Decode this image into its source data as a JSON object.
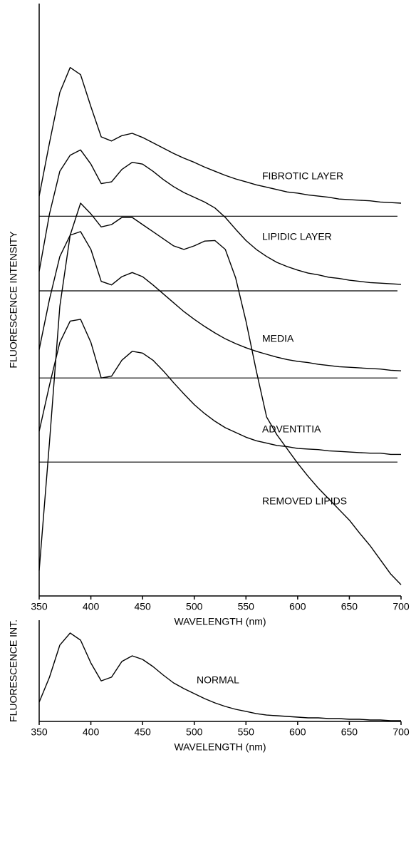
{
  "chart_data": [
    {
      "type": "line",
      "xlabel": "WAVELENGTH (nm)",
      "ylabel": "FLUORESCENCE INTENSITY",
      "xlim": [
        350,
        700
      ],
      "xticks": [
        350,
        400,
        450,
        500,
        550,
        600,
        650,
        700
      ],
      "ylim": [
        0,
        100
      ],
      "color": "#000000",
      "x": [
        350,
        360,
        370,
        380,
        390,
        400,
        410,
        420,
        430,
        440,
        450,
        460,
        470,
        480,
        490,
        500,
        510,
        520,
        530,
        540,
        550,
        560,
        570,
        580,
        590,
        600,
        610,
        620,
        630,
        640,
        650,
        660,
        670,
        680,
        690,
        700
      ],
      "series": [
        {
          "name": "FIBROTIC LAYER",
          "baseline": 64.1,
          "values": [
            67.5,
            76.5,
            85.0,
            89.2,
            88.0,
            82.6,
            77.5,
            76.8,
            77.7,
            78.1,
            77.4,
            76.5,
            75.6,
            74.7,
            73.9,
            73.2,
            72.4,
            71.7,
            71.0,
            70.4,
            69.9,
            69.4,
            69.0,
            68.6,
            68.2,
            68.0,
            67.7,
            67.5,
            67.3,
            67.0,
            66.9,
            66.8,
            66.7,
            66.5,
            66.4,
            66.3
          ]
        },
        {
          "name": "LIPIDIC LAYER",
          "baseline": 51.5,
          "values": [
            54.8,
            64.5,
            71.7,
            74.4,
            75.3,
            72.9,
            69.6,
            69.9,
            72.0,
            73.2,
            72.9,
            71.7,
            70.3,
            69.1,
            68.1,
            67.3,
            66.5,
            65.5,
            63.9,
            61.9,
            60.0,
            58.5,
            57.3,
            56.3,
            55.6,
            55.0,
            54.5,
            54.2,
            53.8,
            53.6,
            53.3,
            53.1,
            52.9,
            52.8,
            52.7,
            52.6
          ]
        },
        {
          "name": "MEDIA",
          "baseline": 36.8,
          "values": [
            41.6,
            50.1,
            57.3,
            60.9,
            61.5,
            58.5,
            53.1,
            52.5,
            53.9,
            54.6,
            53.9,
            52.5,
            51.0,
            49.5,
            48.0,
            46.7,
            45.5,
            44.4,
            43.4,
            42.6,
            41.9,
            41.3,
            40.8,
            40.3,
            39.9,
            39.6,
            39.4,
            39.1,
            38.9,
            38.7,
            38.6,
            38.5,
            38.4,
            38.3,
            38.1,
            38.0
          ]
        },
        {
          "name": "ADVENTITIA",
          "baseline": 22.6,
          "values": [
            27.8,
            35.6,
            42.8,
            46.4,
            46.7,
            42.8,
            36.8,
            37.1,
            39.8,
            41.3,
            41.0,
            39.8,
            38.0,
            36.0,
            34.1,
            32.3,
            30.8,
            29.5,
            28.4,
            27.6,
            26.8,
            26.2,
            25.8,
            25.4,
            25.2,
            24.9,
            24.8,
            24.7,
            24.5,
            24.4,
            24.3,
            24.2,
            24.1,
            24.1,
            23.9,
            23.9
          ]
        },
        {
          "name": "REMOVED LIPIDS",
          "values": [
            4.3,
            26.0,
            48.9,
            60.9,
            66.3,
            64.5,
            62.3,
            62.7,
            63.9,
            63.9,
            62.7,
            61.5,
            60.3,
            59.1,
            58.5,
            59.1,
            59.9,
            60.0,
            58.5,
            53.7,
            46.4,
            38.0,
            30.2,
            27.2,
            24.8,
            22.4,
            20.2,
            18.2,
            16.4,
            14.6,
            12.8,
            10.6,
            8.5,
            6.1,
            3.7,
            1.9
          ]
        }
      ]
    },
    {
      "type": "line",
      "xlabel": "WAVELENGTH (nm)",
      "ylabel": "FLUORESCENCE INT.",
      "xlim": [
        350,
        700
      ],
      "xticks": [
        350,
        400,
        450,
        500,
        550,
        600,
        650,
        700
      ],
      "ylim": [
        0,
        100
      ],
      "color": "#000000",
      "x": [
        350,
        360,
        370,
        380,
        390,
        400,
        410,
        420,
        430,
        440,
        450,
        460,
        470,
        480,
        490,
        500,
        510,
        520,
        530,
        540,
        550,
        560,
        570,
        580,
        590,
        600,
        610,
        620,
        630,
        640,
        650,
        660,
        670,
        680,
        690,
        700
      ],
      "series": [
        {
          "name": "NORMAL",
          "values": [
            19.0,
            43.7,
            75.4,
            87.3,
            80.3,
            57.7,
            40.1,
            43.7,
            59.2,
            64.8,
            61.3,
            54.2,
            45.8,
            38.0,
            32.4,
            27.5,
            22.5,
            18.3,
            14.8,
            12.0,
            9.9,
            7.7,
            6.3,
            5.6,
            4.9,
            4.2,
            3.5,
            3.5,
            2.8,
            2.8,
            2.1,
            2.1,
            1.4,
            1.4,
            0.7,
            0.7
          ]
        }
      ]
    }
  ]
}
